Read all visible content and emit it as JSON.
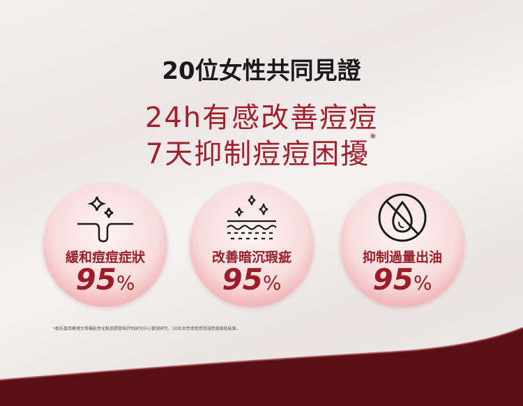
{
  "headline": "20位女性共同見證",
  "claim_line1": "24h有感改善痘痘",
  "claim_line2": "7天抑制痘痘困擾",
  "claim_mark": "*",
  "badges": [
    {
      "icon": "pore-sparkle-icon",
      "label": "緩和痘痘症狀",
      "value": "95",
      "unit": "%"
    },
    {
      "icon": "skin-layer-sparkle-icon",
      "label": "改善暗沉瑕疵",
      "value": "95",
      "unit": "%"
    },
    {
      "icon": "no-oil-drop-icon",
      "label": "抑制過量出油",
      "value": "95",
      "unit": "%"
    }
  ],
  "footnote": "*委託嘉南藥理大學機能性化粧品開發與評估研究中心實測研究，20名女性使用感受滿意度調查結果。",
  "colors": {
    "accent": "#a3202a",
    "band": "#5a0f14"
  }
}
